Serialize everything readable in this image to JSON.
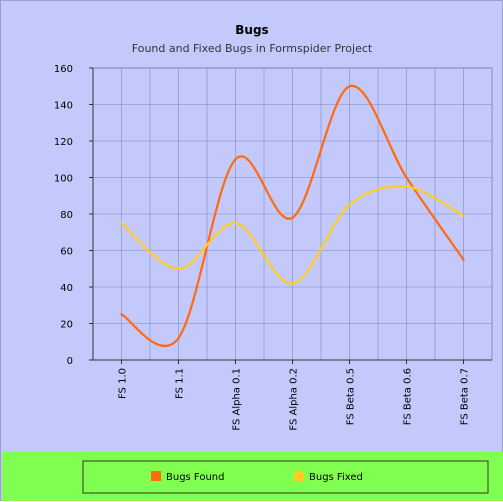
{
  "chart_data": {
    "type": "line",
    "title": "Bugs",
    "subtitle": "Found and Fixed Bugs in Formspider Project",
    "xlabel": "",
    "ylabel": "",
    "categories": [
      "FS 1.0",
      "FS 1.1",
      "FS Alpha 0.1",
      "FS Alpha 0.2",
      "FS Beta 0.5",
      "FS Beta 0.6",
      "FS Beta 0.7"
    ],
    "series": [
      {
        "name": "Bugs Found",
        "color": "#ff6a10",
        "values": [
          25,
          12,
          110,
          78,
          150,
          100,
          55
        ]
      },
      {
        "name": "Bugs Fixed",
        "color": "#ffcc22",
        "values": [
          75,
          50,
          75,
          42,
          85,
          95,
          79
        ]
      }
    ],
    "ylim": [
      0,
      160
    ],
    "yticks": [
      0,
      20,
      40,
      60,
      80,
      100,
      120,
      140,
      160
    ],
    "grid": true,
    "smooth": true,
    "legend_position": "bottom"
  },
  "colors": {
    "page_background": "#c4c9fc",
    "legend_band": "#80ff50",
    "grid": "#5a5f9a"
  }
}
